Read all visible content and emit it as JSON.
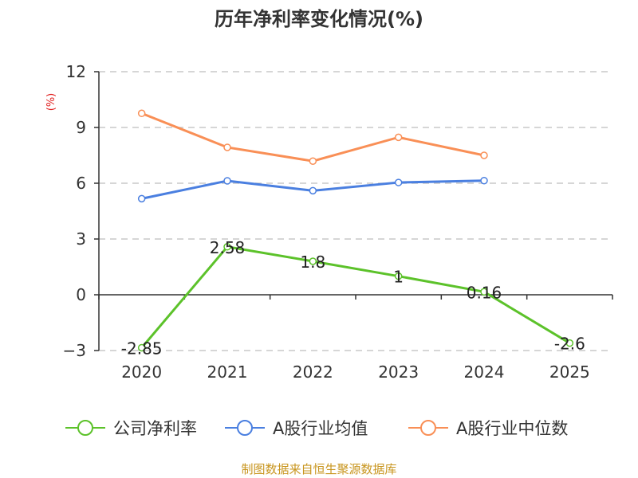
{
  "chart_data": {
    "type": "line",
    "title": "历年净利率变化情况(%)",
    "ylabel": "(%)",
    "categories": [
      "2020",
      "2021",
      "2022",
      "2023",
      "2024",
      "2025"
    ],
    "ylim": [
      -3,
      12
    ],
    "yticks": [
      -3,
      0,
      3,
      6,
      9,
      12
    ],
    "grid": true,
    "legend_position": "bottom",
    "series": [
      {
        "name": "公司净利率",
        "color": "#5cc22a",
        "values": [
          -2.85,
          2.58,
          1.8,
          1,
          0.16,
          -2.6
        ],
        "labels": [
          "-2.85",
          "2.58",
          "1.8",
          "1",
          "0.16",
          "-2.6"
        ]
      },
      {
        "name": "A股行业均值",
        "color": "#4a7fe0",
        "values": [
          5.17,
          6.13,
          5.6,
          6.04,
          6.14,
          null
        ]
      },
      {
        "name": "A股行业中位数",
        "color": "#f98f56",
        "values": [
          9.76,
          7.93,
          7.19,
          8.47,
          7.5,
          null
        ]
      }
    ]
  },
  "footer": {
    "source": "制图数据来自恒生聚源数据库",
    "color": "#c8951e"
  }
}
